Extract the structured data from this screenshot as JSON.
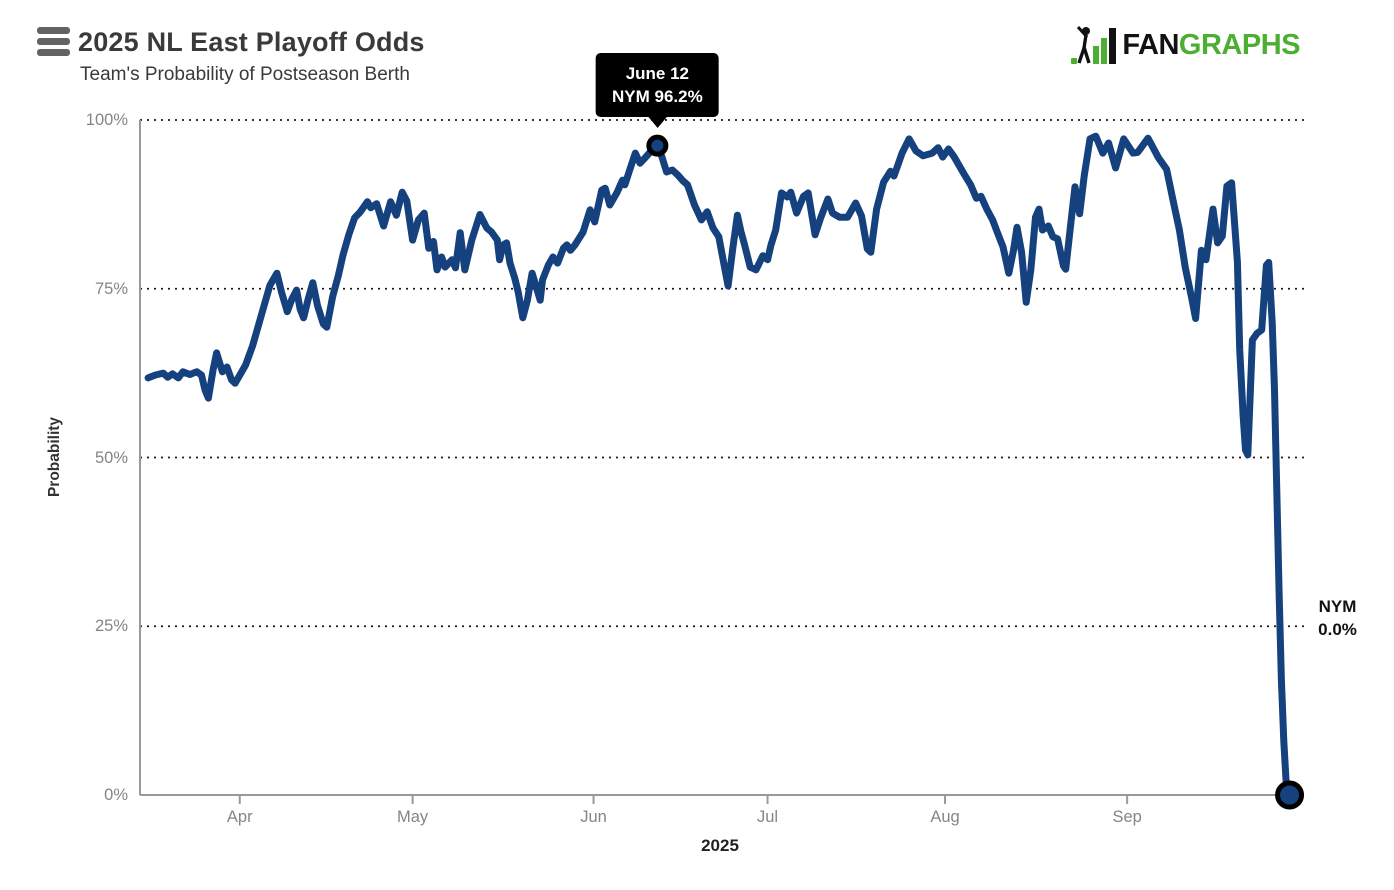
{
  "header": {
    "title": "2025 NL East Playoff Odds",
    "subtitle": "Team's Probability of Postseason Berth",
    "menu_icon": "hamburger-menu",
    "logo": {
      "fan": "FAN",
      "graphs": "GRAPHS",
      "green": "#4CAE32",
      "black": "#111111"
    }
  },
  "chart_data": {
    "type": "line",
    "title": "2025 NL East Playoff Odds",
    "subtitle": "Team's Probability of Postseason Berth",
    "xlabel": "2025",
    "ylabel": "Probability",
    "ylim": [
      0,
      100
    ],
    "grid": "horizontal-dotted",
    "legend": "none",
    "colors": {
      "line": "#15417E",
      "marker_stroke": "#000000",
      "grid": "#1a1a1a",
      "axis": "#999999",
      "tick_text": "#858585"
    },
    "y_ticks": [
      {
        "label": "0%",
        "value": 0
      },
      {
        "label": "25%",
        "value": 25
      },
      {
        "label": "50%",
        "value": 50
      },
      {
        "label": "75%",
        "value": 75
      },
      {
        "label": "100%",
        "value": 100
      }
    ],
    "x_ticks": [
      {
        "label": "Apr",
        "t": 8.6
      },
      {
        "label": "May",
        "t": 23.5
      },
      {
        "label": "Jun",
        "t": 39.1
      },
      {
        "label": "Jul",
        "t": 54.1
      },
      {
        "label": "Aug",
        "t": 69.4
      },
      {
        "label": "Sep",
        "t": 85.1
      }
    ],
    "series": [
      {
        "name": "NYM",
        "color": "#15417E",
        "points": [
          [
            0.7,
            61.8
          ],
          [
            1.3,
            62.2
          ],
          [
            2.0,
            62.5
          ],
          [
            2.4,
            61.9
          ],
          [
            2.8,
            62.4
          ],
          [
            3.3,
            61.8
          ],
          [
            3.7,
            62.7
          ],
          [
            4.3,
            62.3
          ],
          [
            4.9,
            62.7
          ],
          [
            5.3,
            62.2
          ],
          [
            5.6,
            60.0
          ],
          [
            5.9,
            58.8
          ],
          [
            6.3,
            63.0
          ],
          [
            6.6,
            65.5
          ],
          [
            7.1,
            62.7
          ],
          [
            7.5,
            63.4
          ],
          [
            7.9,
            61.5
          ],
          [
            8.2,
            61.0
          ],
          [
            8.6,
            62.2
          ],
          [
            9.1,
            63.7
          ],
          [
            9.7,
            66.5
          ],
          [
            10.2,
            69.5
          ],
          [
            10.7,
            72.5
          ],
          [
            11.2,
            75.5
          ],
          [
            11.8,
            77.3
          ],
          [
            12.2,
            74.5
          ],
          [
            12.7,
            71.6
          ],
          [
            13.1,
            73.5
          ],
          [
            13.5,
            74.8
          ],
          [
            13.8,
            72.0
          ],
          [
            14.1,
            70.7
          ],
          [
            14.5,
            73.5
          ],
          [
            14.9,
            75.9
          ],
          [
            15.3,
            72.5
          ],
          [
            15.8,
            69.8
          ],
          [
            16.1,
            69.3
          ],
          [
            16.6,
            73.8
          ],
          [
            17.1,
            77.0
          ],
          [
            17.5,
            80.0
          ],
          [
            18.0,
            83.0
          ],
          [
            18.5,
            85.5
          ],
          [
            19.0,
            86.4
          ],
          [
            19.6,
            87.9
          ],
          [
            19.9,
            87.0
          ],
          [
            20.4,
            87.6
          ],
          [
            21.0,
            84.3
          ],
          [
            21.6,
            87.9
          ],
          [
            22.1,
            85.9
          ],
          [
            22.6,
            89.3
          ],
          [
            23.0,
            88.0
          ],
          [
            23.5,
            82.2
          ],
          [
            24.0,
            85.2
          ],
          [
            24.5,
            86.2
          ],
          [
            24.9,
            81.0
          ],
          [
            25.3,
            82.0
          ],
          [
            25.6,
            77.8
          ],
          [
            26.0,
            79.7
          ],
          [
            26.3,
            78.2
          ],
          [
            26.9,
            79.3
          ],
          [
            27.2,
            78.1
          ],
          [
            27.6,
            83.3
          ],
          [
            28.0,
            77.8
          ],
          [
            28.6,
            82.2
          ],
          [
            29.3,
            86.0
          ],
          [
            29.9,
            84.0
          ],
          [
            30.3,
            83.4
          ],
          [
            30.8,
            82.2
          ],
          [
            31.0,
            79.3
          ],
          [
            31.3,
            81.5
          ],
          [
            31.6,
            81.8
          ],
          [
            31.9,
            78.8
          ],
          [
            32.3,
            76.6
          ],
          [
            32.6,
            74.5
          ],
          [
            33.0,
            70.7
          ],
          [
            33.4,
            73.3
          ],
          [
            33.8,
            77.3
          ],
          [
            34.1,
            75.6
          ],
          [
            34.5,
            73.3
          ],
          [
            34.7,
            76.3
          ],
          [
            35.2,
            78.5
          ],
          [
            35.6,
            79.7
          ],
          [
            36.0,
            78.8
          ],
          [
            36.5,
            81.0
          ],
          [
            36.8,
            81.5
          ],
          [
            37.1,
            80.7
          ],
          [
            37.5,
            81.5
          ],
          [
            38.2,
            83.4
          ],
          [
            38.8,
            86.7
          ],
          [
            39.2,
            84.9
          ],
          [
            39.8,
            89.6
          ],
          [
            40.1,
            89.9
          ],
          [
            40.5,
            87.4
          ],
          [
            41.1,
            89.2
          ],
          [
            41.6,
            91.1
          ],
          [
            41.8,
            90.4
          ],
          [
            42.2,
            92.5
          ],
          [
            42.7,
            95.1
          ],
          [
            43.1,
            93.6
          ],
          [
            43.6,
            94.5
          ],
          [
            44.1,
            95.5
          ],
          [
            44.6,
            96.2
          ],
          [
            45.0,
            94.5
          ],
          [
            45.4,
            92.3
          ],
          [
            45.9,
            92.6
          ],
          [
            46.4,
            91.8
          ],
          [
            46.8,
            91.0
          ],
          [
            47.2,
            90.4
          ],
          [
            47.8,
            87.4
          ],
          [
            48.4,
            85.2
          ],
          [
            48.9,
            86.4
          ],
          [
            49.4,
            84.0
          ],
          [
            49.9,
            82.7
          ],
          [
            50.3,
            79.0
          ],
          [
            50.7,
            75.4
          ],
          [
            51.1,
            81.0
          ],
          [
            51.5,
            85.9
          ],
          [
            51.8,
            83.5
          ],
          [
            52.1,
            81.6
          ],
          [
            52.6,
            78.2
          ],
          [
            53.1,
            77.8
          ],
          [
            53.7,
            79.9
          ],
          [
            54.1,
            79.3
          ],
          [
            54.4,
            81.5
          ],
          [
            54.8,
            83.7
          ],
          [
            55.3,
            89.2
          ],
          [
            55.8,
            88.6
          ],
          [
            56.1,
            89.3
          ],
          [
            56.6,
            86.2
          ],
          [
            57.2,
            88.7
          ],
          [
            57.6,
            89.2
          ],
          [
            58.2,
            83.0
          ],
          [
            58.7,
            85.6
          ],
          [
            59.3,
            88.3
          ],
          [
            59.7,
            86.2
          ],
          [
            60.3,
            85.6
          ],
          [
            61.0,
            85.6
          ],
          [
            61.7,
            87.7
          ],
          [
            62.2,
            85.8
          ],
          [
            62.7,
            80.9
          ],
          [
            63.0,
            80.4
          ],
          [
            63.5,
            86.8
          ],
          [
            64.1,
            90.8
          ],
          [
            64.7,
            92.4
          ],
          [
            65.0,
            91.7
          ],
          [
            65.7,
            95.1
          ],
          [
            66.3,
            97.2
          ],
          [
            66.9,
            95.4
          ],
          [
            67.5,
            94.7
          ],
          [
            68.3,
            95.1
          ],
          [
            68.8,
            95.9
          ],
          [
            69.2,
            94.5
          ],
          [
            69.7,
            95.7
          ],
          [
            70.2,
            94.5
          ],
          [
            71.0,
            92.1
          ],
          [
            71.6,
            90.4
          ],
          [
            72.1,
            88.4
          ],
          [
            72.5,
            88.7
          ],
          [
            73.0,
            86.8
          ],
          [
            73.5,
            85.2
          ],
          [
            73.9,
            83.4
          ],
          [
            74.4,
            81.2
          ],
          [
            74.9,
            77.3
          ],
          [
            75.3,
            80.7
          ],
          [
            75.6,
            84.1
          ],
          [
            76.0,
            80.4
          ],
          [
            76.4,
            73.0
          ],
          [
            76.8,
            77.9
          ],
          [
            77.2,
            85.6
          ],
          [
            77.5,
            86.8
          ],
          [
            77.8,
            83.7
          ],
          [
            78.3,
            84.3
          ],
          [
            78.7,
            82.7
          ],
          [
            79.1,
            82.4
          ],
          [
            79.6,
            78.4
          ],
          [
            79.8,
            77.9
          ],
          [
            80.3,
            85.6
          ],
          [
            80.6,
            90.1
          ],
          [
            81.0,
            86.1
          ],
          [
            81.4,
            91.7
          ],
          [
            81.9,
            97.2
          ],
          [
            82.4,
            97.6
          ],
          [
            83.0,
            95.1
          ],
          [
            83.5,
            96.6
          ],
          [
            84.1,
            92.9
          ],
          [
            84.8,
            97.2
          ],
          [
            85.6,
            95.1
          ],
          [
            86.0,
            95.2
          ],
          [
            86.9,
            97.3
          ],
          [
            87.8,
            94.4
          ],
          [
            88.5,
            92.7
          ],
          [
            89.1,
            87.7
          ],
          [
            89.6,
            83.7
          ],
          [
            90.1,
            78.2
          ],
          [
            90.7,
            73.3
          ],
          [
            91.0,
            70.6
          ],
          [
            91.5,
            80.7
          ],
          [
            91.9,
            79.3
          ],
          [
            92.5,
            86.8
          ],
          [
            92.9,
            81.8
          ],
          [
            93.3,
            82.8
          ],
          [
            93.7,
            90.2
          ],
          [
            94.1,
            90.7
          ],
          [
            94.6,
            79.0
          ],
          [
            94.8,
            66.0
          ],
          [
            95.1,
            56.0
          ],
          [
            95.3,
            51.1
          ],
          [
            95.5,
            50.4
          ],
          [
            95.9,
            67.4
          ],
          [
            96.3,
            68.4
          ],
          [
            96.7,
            68.9
          ],
          [
            97.1,
            78.5
          ],
          [
            97.3,
            78.9
          ],
          [
            97.6,
            70.0
          ],
          [
            97.8,
            60.0
          ],
          [
            98.0,
            45.0
          ],
          [
            98.2,
            30.0
          ],
          [
            98.4,
            17.0
          ],
          [
            98.6,
            8.0
          ],
          [
            98.8,
            2.0
          ],
          [
            99.1,
            0.0
          ]
        ]
      }
    ],
    "tooltip": {
      "line1": "June 12",
      "line2": "NYM 96.2%",
      "t": 44.6,
      "v": 96.2
    },
    "end_label": {
      "team": "NYM",
      "value": "0.0%",
      "t": 99.1,
      "v": 0
    }
  }
}
